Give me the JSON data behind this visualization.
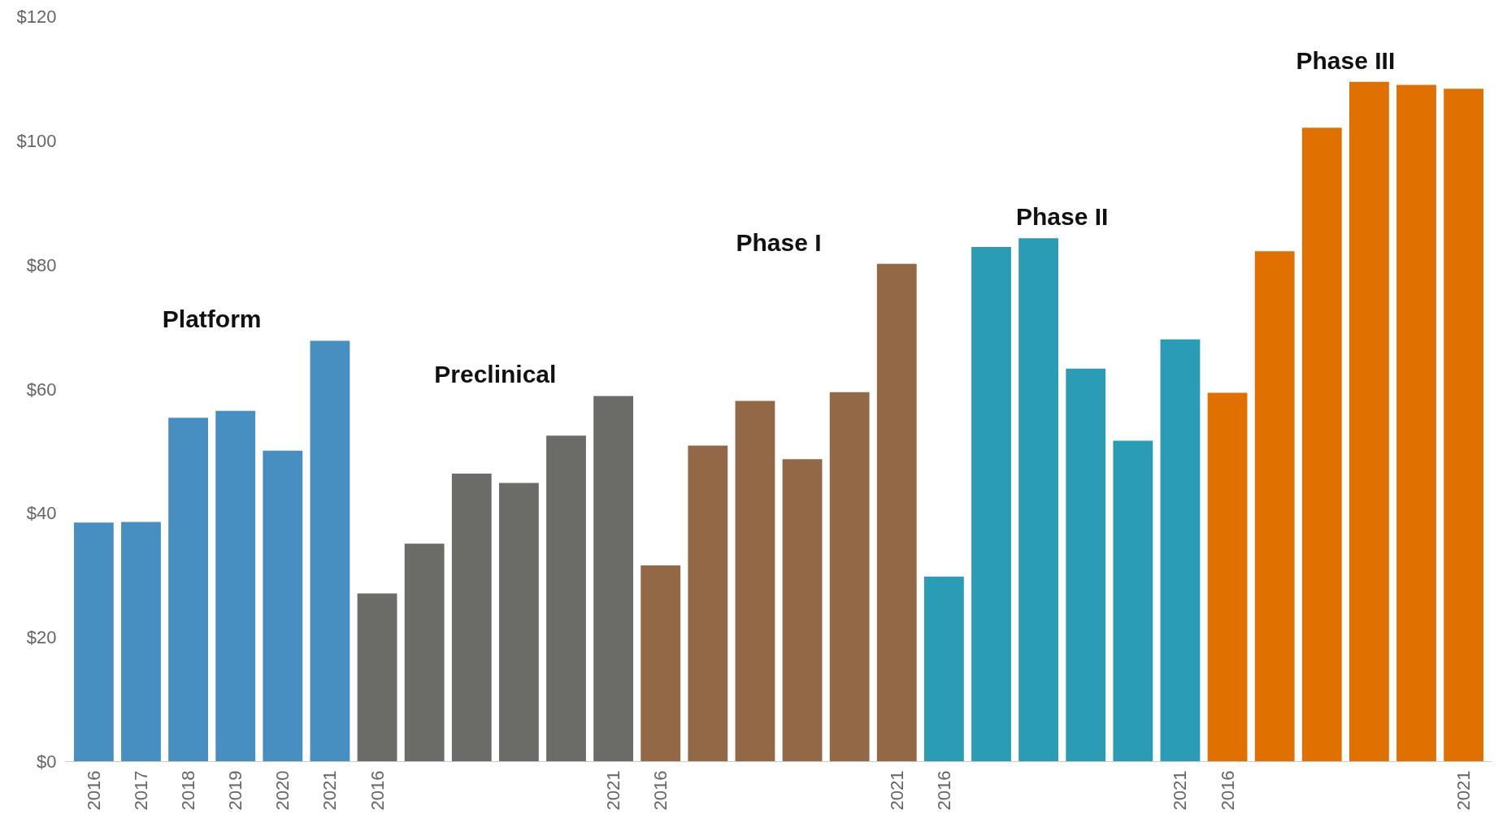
{
  "chart_data": {
    "type": "bar",
    "categories": [
      "2016",
      "2017",
      "2018",
      "2019",
      "2020",
      "2021",
      "2016",
      null,
      null,
      null,
      null,
      "2021",
      "2016",
      null,
      null,
      null,
      null,
      "2021",
      "2016",
      null,
      null,
      null,
      null,
      "2021",
      "2016",
      null,
      null,
      null,
      null,
      "2021"
    ],
    "series": [
      {
        "name": "Platform",
        "color": "#478fc1",
        "values": [
          38.5,
          38.6,
          55.4,
          56.5,
          50.1,
          67.8,
          null,
          null,
          null,
          null,
          null,
          null,
          null,
          null,
          null,
          null,
          null,
          null,
          null,
          null,
          null,
          null,
          null,
          null,
          null,
          null,
          null,
          null,
          null,
          null
        ]
      },
      {
        "name": "Preclinical",
        "color": "#6b6b67",
        "values": [
          null,
          null,
          null,
          null,
          null,
          null,
          27.1,
          35.1,
          46.4,
          44.9,
          52.5,
          58.9,
          null,
          null,
          null,
          null,
          null,
          null,
          null,
          null,
          null,
          null,
          null,
          null,
          null,
          null,
          null,
          null,
          null,
          null
        ]
      },
      {
        "name": "Phase I",
        "color": "#936846",
        "values": [
          null,
          null,
          null,
          null,
          null,
          null,
          null,
          null,
          null,
          null,
          null,
          null,
          31.6,
          50.9,
          58.1,
          48.7,
          59.5,
          80.2,
          null,
          null,
          null,
          null,
          null,
          null,
          null,
          null,
          null,
          null,
          null,
          null
        ]
      },
      {
        "name": "Phase II",
        "color": "#2b9cb5",
        "values": [
          null,
          null,
          null,
          null,
          null,
          null,
          null,
          null,
          null,
          null,
          null,
          null,
          null,
          null,
          null,
          null,
          null,
          null,
          29.8,
          82.9,
          84.3,
          63.3,
          51.7,
          68.0,
          null,
          null,
          null,
          null,
          null,
          null
        ]
      },
      {
        "name": "Phase III",
        "color": "#e07000",
        "values": [
          null,
          null,
          null,
          null,
          null,
          null,
          null,
          null,
          null,
          null,
          null,
          null,
          null,
          null,
          null,
          null,
          null,
          null,
          null,
          null,
          null,
          null,
          null,
          null,
          59.4,
          82.2,
          102.1,
          109.5,
          109.0,
          108.4
        ]
      }
    ],
    "ylim": [
      0,
      120
    ],
    "yticks": [
      {
        "value": 0,
        "label": "$0"
      },
      {
        "value": 20,
        "label": "$20"
      },
      {
        "value": 40,
        "label": "$40"
      },
      {
        "value": 60,
        "label": "$60"
      },
      {
        "value": 80,
        "label": "$80"
      },
      {
        "value": 100,
        "label": "$100"
      },
      {
        "value": 120,
        "label": "$120"
      }
    ],
    "grid": false
  }
}
